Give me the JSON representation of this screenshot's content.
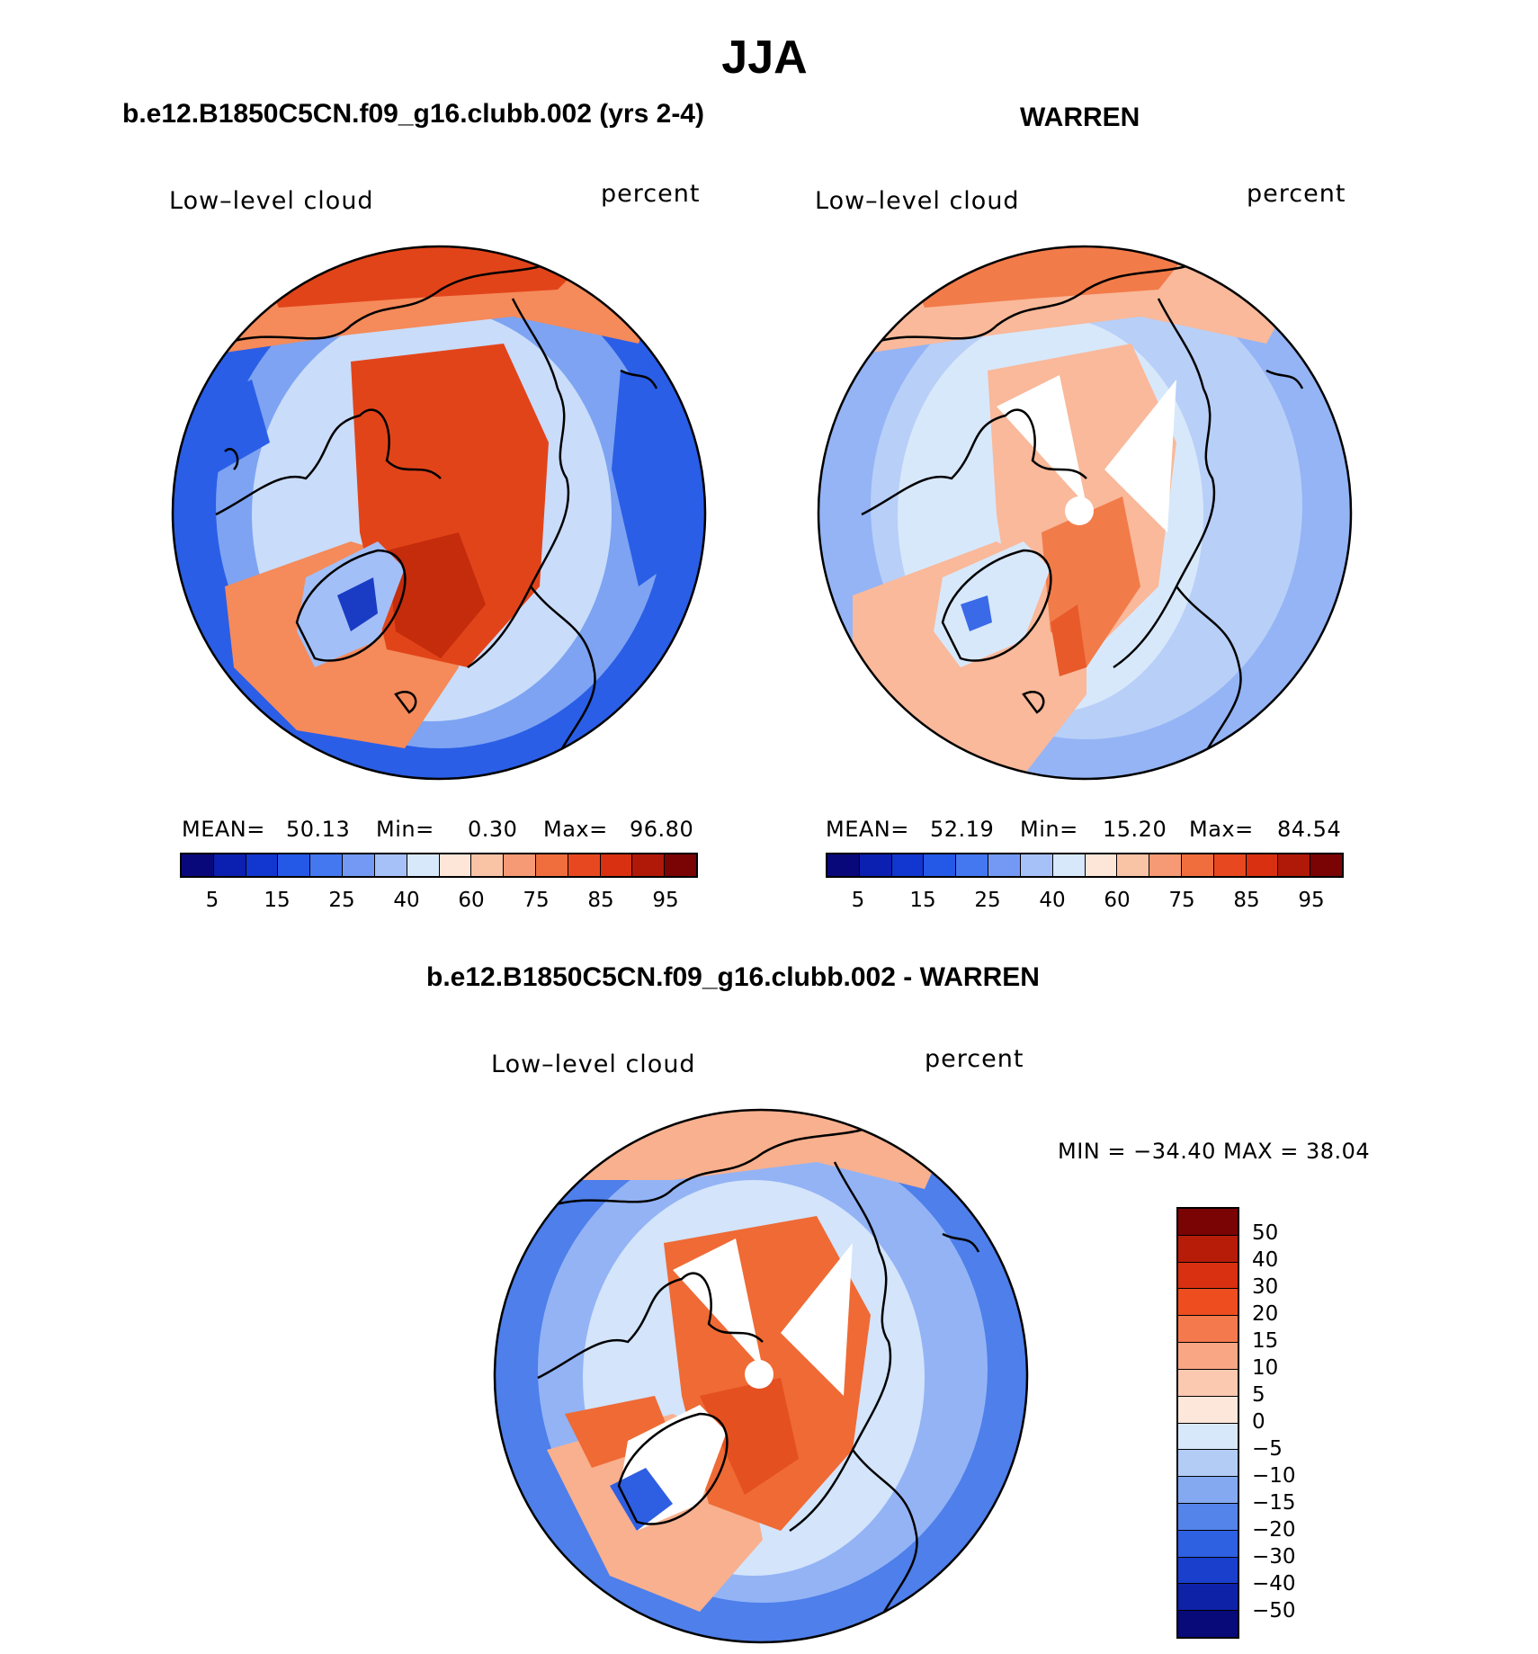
{
  "title": "JJA",
  "panel_left": {
    "title": "b.e12.B1850C5CN.f09_g16.clubb.002 (yrs 2-4)",
    "variable": "Low–level cloud",
    "units": "percent",
    "mean_label": "MEAN=",
    "mean": "50.13",
    "min_label": "Min=",
    "min": "0.30",
    "max_label": "Max=",
    "max": "96.80"
  },
  "panel_right": {
    "title": "WARREN",
    "variable": "Low–level cloud",
    "units": "percent",
    "mean_label": "MEAN=",
    "mean": "52.19",
    "min_label": "Min=",
    "min": "15.20",
    "max_label": "Max=",
    "max": "84.54"
  },
  "panel_diff": {
    "title": "b.e12.B1850C5CN.f09_g16.clubb.002 - WARREN",
    "variable": "Low–level cloud",
    "units": "percent",
    "minmax_text": "MIN = −34.40 MAX =  38.04"
  },
  "abs_colorbar": {
    "colors": [
      "#08087a",
      "#0b1fb0",
      "#1236d0",
      "#2458e6",
      "#4478f0",
      "#7399f4",
      "#a6c1f8",
      "#d8e8fb",
      "#fde6d8",
      "#f9c3a6",
      "#f59a74",
      "#f06e3e",
      "#e8481f",
      "#d83010",
      "#b01808",
      "#7a0404"
    ],
    "tick_labels": [
      "5",
      "15",
      "25",
      "40",
      "60",
      "75",
      "85",
      "95"
    ]
  },
  "diff_colorbar": {
    "colors": [
      "#7a0404",
      "#b71c08",
      "#d83010",
      "#ee4d20",
      "#f4794d",
      "#f9a684",
      "#fbc9b0",
      "#fde7da",
      "#d8e8fb",
      "#b2ccf6",
      "#84a9f0",
      "#5483ea",
      "#2e60e2",
      "#1a3fcc",
      "#0e22a8",
      "#070a78"
    ],
    "tick_labels": [
      "50",
      "40",
      "30",
      "20",
      "15",
      "10",
      "5",
      "0",
      "−5",
      "−10",
      "−15",
      "−20",
      "−30",
      "−40",
      "−50"
    ]
  },
  "map_colors": {
    "model": {
      "ocean_outer": "#2a5ee6",
      "mid": "#7da3f2",
      "light": "#c9dcfa",
      "warm": "#f58a5a",
      "hot": "#e2441a",
      "core": "#c42c0c",
      "ice": "#a3bff7",
      "ice_deep": "#1a3cc4"
    },
    "obs": {
      "ocean_outer": "#94b4f5",
      "mid": "#b8cff8",
      "light": "#d8e8fb",
      "warm": "#f9b99a",
      "hot": "#f27b4a",
      "core": "#e85a2a",
      "ice": "#d8e8fb",
      "ice_deep": "#3a6ae8"
    },
    "diff": {
      "ocean_outer": "#4e7fea",
      "mid": "#93b3f5",
      "light": "#d3e4fb",
      "warm": "#f8b08e",
      "hot": "#ef6a35",
      "core": "#e4501f",
      "ice": "#ffffff",
      "ice_deep": "#2e5ee2"
    }
  }
}
